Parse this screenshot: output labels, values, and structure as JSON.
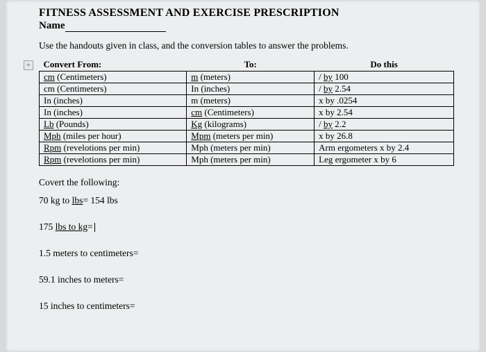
{
  "title": "FITNESS ASSESSMENT AND EXERCISE PRESCRIPTION",
  "name_label": "Name",
  "instructions": "Use the handouts given in class, and the conversion tables to answer the problems.",
  "table": {
    "headers": {
      "from": "Convert From:",
      "to": "To:",
      "dothis": "Do this"
    },
    "rows": [
      {
        "from_u": "cm",
        "from_rest": " (Centimeters)",
        "to_u": "m",
        "to_rest": " (meters)",
        "do_pre": "/ ",
        "do_u": "by",
        "do_rest": " 100"
      },
      {
        "from_u": "",
        "from_rest": "cm (Centimeters)",
        "to_u": "",
        "to_rest": "In (inches)",
        "do_pre": "/ ",
        "do_u": "by",
        "do_rest": " 2.54"
      },
      {
        "from_u": "",
        "from_rest": "In (inches)",
        "to_u": "",
        "to_rest": "m (meters)",
        "do_pre": "",
        "do_u": "",
        "do_rest": "x by .0254"
      },
      {
        "from_u": "",
        "from_rest": "In (inches)",
        "to_u": "cm",
        "to_rest": " (Centimeters)",
        "do_pre": "",
        "do_u": "",
        "do_rest": "x by 2.54"
      },
      {
        "from_u": "Lb",
        "from_rest": " (Pounds)",
        "to_u": "Kg",
        "to_rest": " (kilograms)",
        "do_pre": "/ ",
        "do_u": "by",
        "do_rest": " 2.2"
      },
      {
        "from_u": "Mph",
        "from_rest": " (miles per hour)",
        "to_u": "Mpm",
        "to_rest": " (meters per min)",
        "do_pre": "",
        "do_u": "",
        "do_rest": "x by 26.8"
      },
      {
        "from_u": "Rpm",
        "from_rest": " (revelotions per min)",
        "to_u": "",
        "to_rest": "Mph (meters per min)",
        "do_pre": "",
        "do_u": "",
        "do_rest": "Arm ergometers x by 2.4"
      },
      {
        "from_u": "Rpm",
        "from_rest": " (revelotions per min)",
        "to_u": "",
        "to_rest": "Mph (meters per min)",
        "do_pre": "",
        "do_u": "",
        "do_rest": "Leg ergometer x by 6"
      }
    ]
  },
  "problems": {
    "heading": "Covert the following:",
    "p1_pre": "70 kg to ",
    "p1_u": "lbs",
    "p1_post": "= 154 lbs",
    "p2_pre": "175 ",
    "p2_u": "lbs to kg",
    "p2_post": "=",
    "p3": "1.5 meters to centimeters=",
    "p4": "59.1 inches to meters=",
    "p5": "15 inches to centimeters="
  },
  "colors": {
    "page_bg": "#eceeef",
    "outer_bg": "#d8d9db",
    "text": "#000000",
    "border": "#000000"
  }
}
